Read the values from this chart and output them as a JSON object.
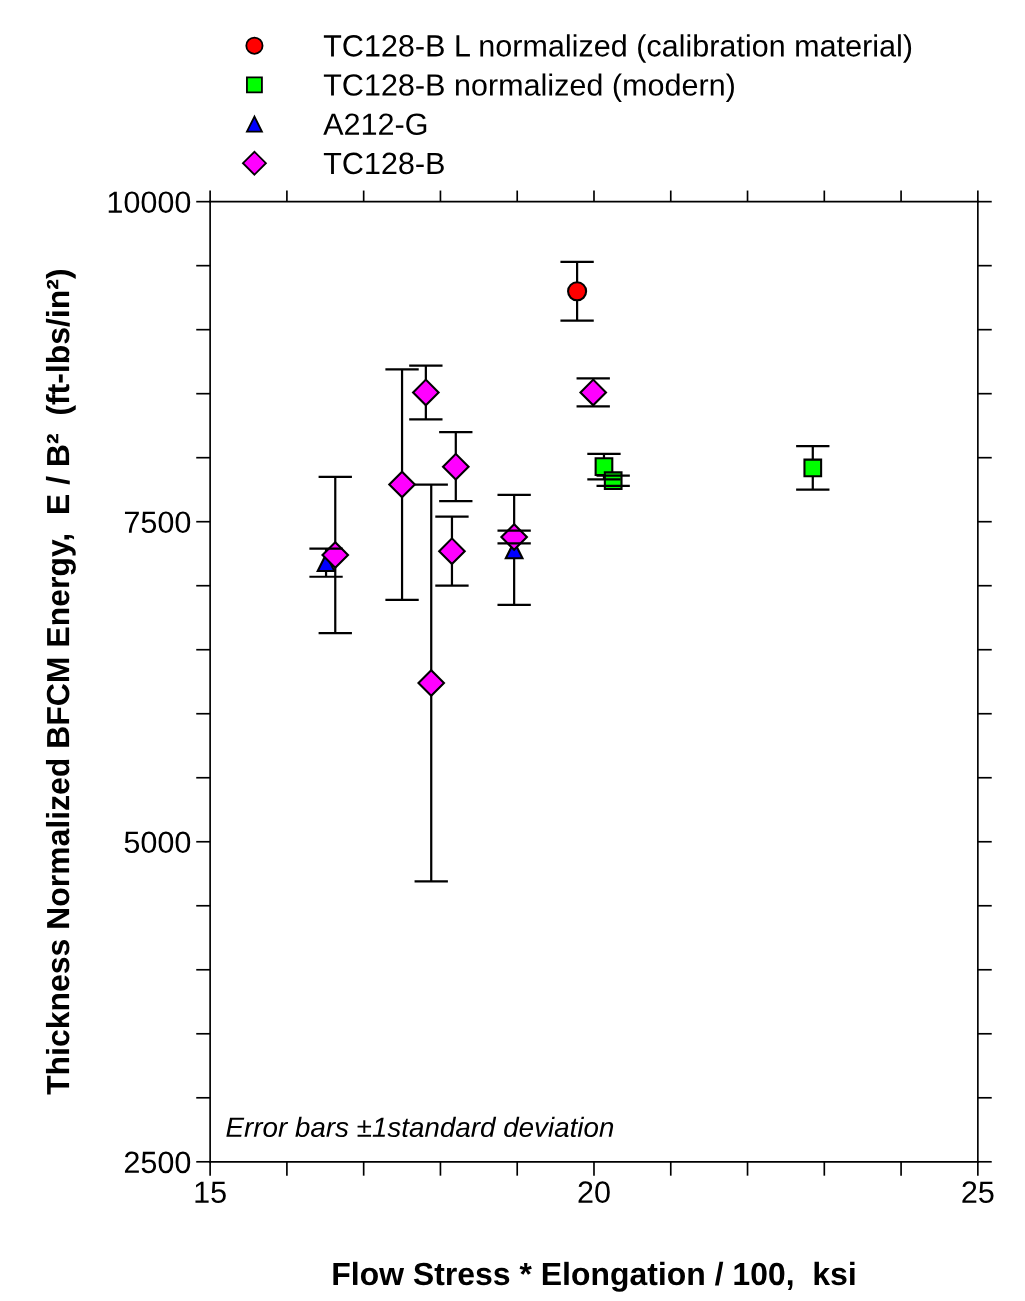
{
  "chart_data": {
    "type": "scatter",
    "xlabel": "Flow Stress * Elongation / 100,  ksi",
    "ylabel": "Thickness Normalized BFCM Energy,  E / B²  (ft-lbs/in²)",
    "xlim": [
      15,
      25
    ],
    "xticks": [
      15,
      {
        "value": 16,
        "label": null
      },
      {
        "value": 17,
        "label": null
      },
      {
        "value": 18,
        "label": null
      },
      {
        "value": 19,
        "label": null
      },
      20,
      {
        "value": 21,
        "label": null
      },
      {
        "value": 22,
        "label": null
      },
      {
        "value": 23,
        "label": null
      },
      {
        "value": 24,
        "label": null
      },
      25
    ],
    "ylim": [
      2500,
      10000
    ],
    "yticks": [
      2500,
      {
        "value": 3000,
        "label": null
      },
      {
        "value": 3500,
        "label": null
      },
      {
        "value": 4000,
        "label": null
      },
      {
        "value": 4500,
        "label": null
      },
      5000,
      {
        "value": 5500,
        "label": null
      },
      {
        "value": 6000,
        "label": null
      },
      {
        "value": 6500,
        "label": null
      },
      {
        "value": 7000,
        "label": null
      },
      7500,
      {
        "value": 8000,
        "label": null
      },
      {
        "value": 8500,
        "label": null
      },
      {
        "value": 9000,
        "label": null
      },
      {
        "value": 9500,
        "label": null
      },
      10000
    ],
    "grid": false,
    "legend": "top",
    "annotations": [
      "Error bars ±1standard deviation"
    ],
    "series": [
      {
        "name": "TC128-B L normalized (calibration material)",
        "color": "#ff0000",
        "marker": "circle",
        "x": [
          19.78
        ],
        "values": [
          9300
        ],
        "errors": [
          230
        ]
      },
      {
        "name": "TC128-B normalized (modern)",
        "color": "#00ff00",
        "marker": "square",
        "x": [
          20.13,
          20.25,
          22.85
        ],
        "values": [
          7930,
          7820,
          7920
        ],
        "errors": [
          100,
          40,
          170
        ]
      },
      {
        "name": "A212-G",
        "color": "#0000ff",
        "marker": "triangle",
        "x": [
          16.51,
          18.96
        ],
        "values": [
          7180,
          7280
        ],
        "errors": [
          110,
          430
        ]
      },
      {
        "name": "TC128-B",
        "color": "#ff00ff",
        "marker": "diamond",
        "x": [
          16.63,
          17.5,
          17.81,
          17.88,
          18.15,
          18.2,
          18.96,
          19.99
        ],
        "values": [
          7240,
          7790,
          8510,
          6240,
          7270,
          7930,
          7380,
          8510
        ],
        "errors": [
          610,
          900,
          210,
          1550,
          270,
          270,
          50,
          110
        ]
      }
    ]
  }
}
